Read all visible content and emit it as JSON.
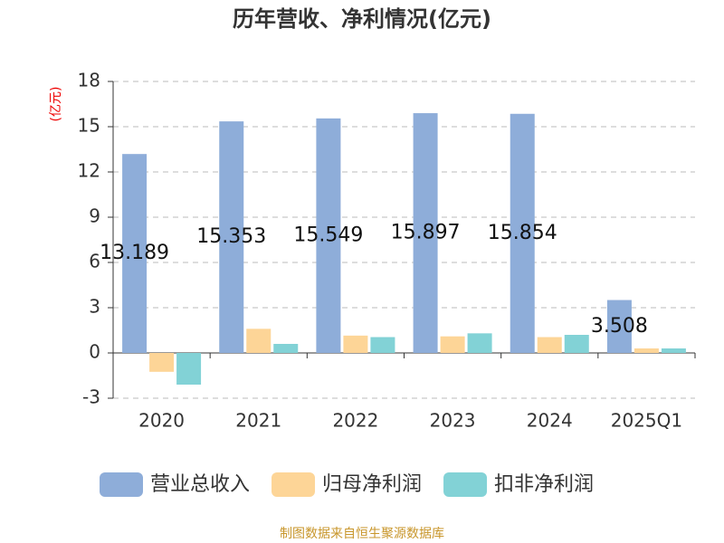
{
  "chart_data": {
    "type": "bar",
    "title": "历年营收、净利情况(亿元)",
    "y_label": "(亿元)",
    "source": "制图数据来自恒生聚源数据库",
    "categories": [
      "2020",
      "2021",
      "2022",
      "2023",
      "2024",
      "2025Q1"
    ],
    "series": [
      {
        "name": "营业总收入",
        "color": "#8eadd9",
        "values": [
          13.189,
          15.353,
          15.549,
          15.897,
          15.854,
          3.508
        ],
        "show_labels": true
      },
      {
        "name": "归母净利润",
        "color": "#fdd597",
        "values": [
          -1.25,
          1.6,
          1.15,
          1.1,
          1.05,
          0.3
        ]
      },
      {
        "name": "扣非净利润",
        "color": "#82d2d6",
        "values": [
          -2.1,
          0.6,
          1.05,
          1.3,
          1.2,
          0.3
        ]
      }
    ],
    "ylim": [
      -3,
      18
    ],
    "yticks": [
      -3,
      0,
      3,
      6,
      9,
      12,
      15,
      18
    ],
    "grid": true,
    "legend": "bottom"
  }
}
